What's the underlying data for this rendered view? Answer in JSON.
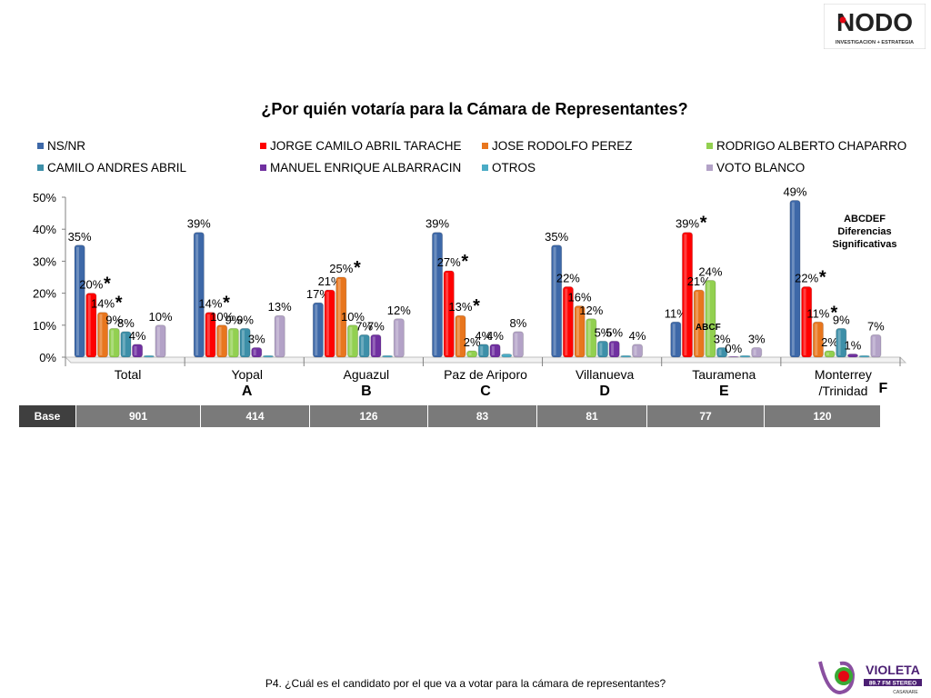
{
  "logos": {
    "top_brand": "NODO",
    "top_sub": "INVESTIGACION + ESTRATEGIA",
    "bottom_brand": "VIOLETA",
    "bottom_sub": "89.7 FM  STEREO",
    "bottom_sub2": "CASANARE"
  },
  "footnote": "P4. ¿Cuál es el candidato por el que va a votar para la cámara de representantes?",
  "base": {
    "label": "Base",
    "values": [
      "901",
      "414",
      "126",
      "83",
      "81",
      "77",
      "120"
    ]
  },
  "significance_note": [
    "ABCDEF",
    "Diferencias",
    "Significativas"
  ],
  "chart_data": {
    "type": "bar",
    "title": "¿Por quién votaría para la Cámara de Representantes?",
    "categories": [
      "Total",
      "Yopal",
      "Aguazul",
      "Paz de Ariporo",
      "Villanueva",
      "Tauramena",
      "Monterrey /Trinidad"
    ],
    "category_lines": [
      [
        "Total"
      ],
      [
        "Yopal"
      ],
      [
        "Aguazul"
      ],
      [
        "Paz de Ariporo"
      ],
      [
        "Villanueva"
      ],
      [
        "Tauramena"
      ],
      [
        "Monterrey",
        "/Trinidad"
      ]
    ],
    "category_codes": [
      "",
      "A",
      "B",
      "C",
      "D",
      "E",
      "F"
    ],
    "ylim": [
      0,
      50
    ],
    "yticks": [
      "0%",
      "10%",
      "20%",
      "30%",
      "40%",
      "50%"
    ],
    "legend_placement": "top",
    "series": [
      {
        "name": "NS/NR",
        "color": "#3d68a8",
        "values": [
          35,
          39,
          17,
          39,
          35,
          11,
          49
        ]
      },
      {
        "name": "JORGE CAMILO ABRIL TARACHE",
        "color": "#ff0000",
        "values": [
          20,
          14,
          21,
          27,
          22,
          39,
          22
        ]
      },
      {
        "name": "JOSE RODOLFO PEREZ",
        "color": "#e8761e",
        "values": [
          14,
          10,
          25,
          13,
          16,
          21,
          11
        ]
      },
      {
        "name": "RODRIGO ALBERTO CHAPARRO",
        "color": "#92d050",
        "values": [
          9,
          9,
          10,
          2,
          12,
          24,
          2
        ]
      },
      {
        "name": "CAMILO ANDRES ABRIL",
        "color": "#3d8fa8",
        "values": [
          8,
          9,
          7,
          4,
          5,
          3,
          9
        ]
      },
      {
        "name": "MANUEL ENRIQUE ALBARRACIN",
        "color": "#7030a0",
        "values": [
          4,
          3,
          7,
          4,
          5,
          0,
          1
        ]
      },
      {
        "name": "OTROS",
        "color": "#4bacc6",
        "values": [
          0.5,
          0.5,
          0.5,
          1,
          0.5,
          0.5,
          0.5
        ]
      },
      {
        "name": "VOTO BLANCO",
        "color": "#b3a2c7",
        "values": [
          10,
          13,
          12,
          8,
          4,
          3,
          7
        ]
      }
    ],
    "data_labels": [
      [
        "35%",
        "39%",
        "17%",
        "39%",
        "35%",
        "11%",
        "49%"
      ],
      [
        "20%",
        "14%",
        "21%",
        "27%",
        "22%",
        "39%",
        "22%"
      ],
      [
        "14%",
        "10%",
        "25%",
        "13%",
        "16%",
        "21%",
        "11%"
      ],
      [
        "9%",
        "9%",
        "10%",
        "2%",
        "12%",
        "24%",
        "2%"
      ],
      [
        "8%",
        "9%",
        "7%",
        "4%",
        "5%",
        "3%",
        "9%"
      ],
      [
        "4%",
        "3%",
        "7%",
        "4%",
        "5%",
        "0%",
        "1%"
      ],
      [
        "",
        "",
        "",
        "",
        "",
        "",
        ""
      ],
      [
        "10%",
        "13%",
        "12%",
        "8%",
        "4%",
        "3%",
        "7%"
      ]
    ],
    "significance_marks": [
      {
        "series": 1,
        "category": 0,
        "text": "*"
      },
      {
        "series": 2,
        "category": 0,
        "text": "*"
      },
      {
        "series": 1,
        "category": 1,
        "text": "*"
      },
      {
        "series": 2,
        "category": 2,
        "text": "*"
      },
      {
        "series": 1,
        "category": 3,
        "text": "*"
      },
      {
        "series": 2,
        "category": 3,
        "text": "*"
      },
      {
        "series": 1,
        "category": 5,
        "text": "*"
      },
      {
        "series": 1,
        "category": 6,
        "text": "*"
      },
      {
        "series": 2,
        "category": 6,
        "text": "*"
      }
    ],
    "bar_annotation": {
      "series": 3,
      "category": 5,
      "text": "ABCF"
    }
  }
}
